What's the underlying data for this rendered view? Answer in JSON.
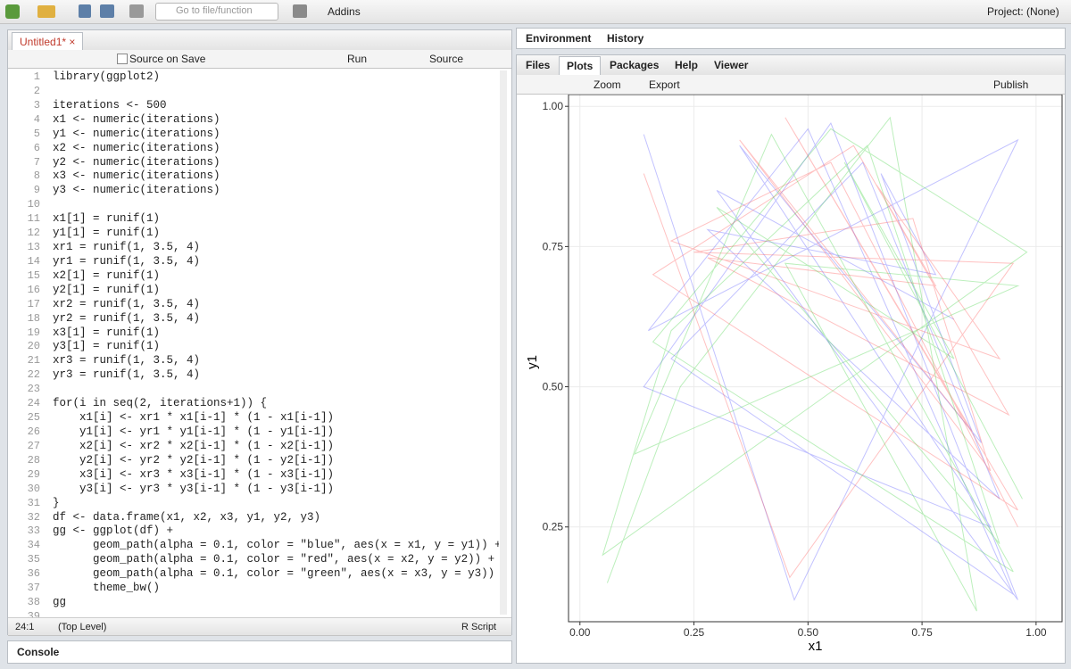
{
  "toolbar": {
    "go_to": "Go to file/function",
    "addins": "Addins",
    "project": "Project: (None)"
  },
  "editor": {
    "tab": "Untitled1*",
    "source_on_save": "Source on Save",
    "run": "Run",
    "source": "Source",
    "lines": [
      {
        "n": 1,
        "code": "library(ggplot2)"
      },
      {
        "n": 2
      },
      {
        "n": 3,
        "code": "iterations <- 500"
      },
      {
        "n": 4,
        "code": "x1 <- numeric(iterations)"
      },
      {
        "n": 5,
        "code": "y1 <- numeric(iterations)"
      },
      {
        "n": 6,
        "code": "x2 <- numeric(iterations)"
      },
      {
        "n": 7,
        "code": "y2 <- numeric(iterations)"
      },
      {
        "n": 8,
        "code": "x3 <- numeric(iterations)"
      },
      {
        "n": 9,
        "code": "y3 <- numeric(iterations)"
      },
      {
        "n": 10
      },
      {
        "n": 11,
        "code": "x1[1] = runif(1)"
      },
      {
        "n": 12,
        "code": "y1[1] = runif(1)"
      },
      {
        "n": 13,
        "code": "xr1 = runif(1, 3.5, 4)"
      },
      {
        "n": 14,
        "code": "yr1 = runif(1, 3.5, 4)"
      },
      {
        "n": 15,
        "code": "x2[1] = runif(1)"
      },
      {
        "n": 16,
        "code": "y2[1] = runif(1)"
      },
      {
        "n": 17,
        "code": "xr2 = runif(1, 3.5, 4)"
      },
      {
        "n": 18,
        "code": "yr2 = runif(1, 3.5, 4)"
      },
      {
        "n": 19,
        "code": "x3[1] = runif(1)"
      },
      {
        "n": 20,
        "code": "y3[1] = runif(1)"
      },
      {
        "n": 21,
        "code": "xr3 = runif(1, 3.5, 4)"
      },
      {
        "n": 22,
        "code": "yr3 = runif(1, 3.5, 4)"
      },
      {
        "n": 23
      },
      {
        "n": 24,
        "code": "for(i in seq(2, iterations+1)) {"
      },
      {
        "n": 25,
        "code": "    x1[i] <- xr1 * x1[i-1] * (1 - x1[i-1])"
      },
      {
        "n": 26,
        "code": "    y1[i] <- yr1 * y1[i-1] * (1 - y1[i-1])"
      },
      {
        "n": 27,
        "code": "    x2[i] <- xr2 * x2[i-1] * (1 - x2[i-1])"
      },
      {
        "n": 28,
        "code": "    y2[i] <- yr2 * y2[i-1] * (1 - y2[i-1])"
      },
      {
        "n": 29,
        "code": "    x3[i] <- xr3 * x3[i-1] * (1 - x3[i-1])"
      },
      {
        "n": 30,
        "code": "    y3[i] <- yr3 * y3[i-1] * (1 - y3[i-1])"
      },
      {
        "n": 31,
        "code": "}"
      },
      {
        "n": 32,
        "code": "df <- data.frame(x1, x2, x3, y1, y2, y3)"
      },
      {
        "n": 33,
        "code": "gg <- ggplot(df) +"
      },
      {
        "n": 34,
        "code": "      geom_path(alpha = 0.1, color = \"blue\", aes(x = x1, y = y1)) +"
      },
      {
        "n": 35,
        "code": "      geom_path(alpha = 0.1, color = \"red\", aes(x = x2, y = y2)) +"
      },
      {
        "n": 36,
        "code": "      geom_path(alpha = 0.1, color = \"green\", aes(x = x3, y = y3)) +"
      },
      {
        "n": 37,
        "code": "      theme_bw()"
      },
      {
        "n": 38,
        "code": "gg"
      },
      {
        "n": 39
      }
    ],
    "status_position": "24:1",
    "status_scope": "(Top Level)",
    "status_type": "R Script"
  },
  "console": {
    "title": "Console"
  },
  "top_right_tabs": [
    "Environment",
    "History"
  ],
  "bottom_right_tabs": [
    "Files",
    "Plots",
    "Packages",
    "Help",
    "Viewer"
  ],
  "plot_toolbar": {
    "zoom": "Zoom",
    "export": "Export",
    "publish": "Publish"
  },
  "chart_data": {
    "type": "path",
    "x_label": "x1",
    "y_label": "y1",
    "xlim": [
      -0.025,
      1.057
    ],
    "ylim": [
      0.081,
      1.021
    ],
    "xticks": [
      {
        "value": 0,
        "label": "0.00"
      },
      {
        "value": 0.25,
        "label": "0.25"
      },
      {
        "value": 0.5,
        "label": "0.50"
      },
      {
        "value": 0.75,
        "label": "0.75"
      },
      {
        "value": 1,
        "label": "1.00"
      }
    ],
    "yticks": [
      {
        "value": 0.25,
        "label": "0.25"
      },
      {
        "value": 0.5,
        "label": "0.50"
      },
      {
        "value": 0.75,
        "label": "0.75"
      },
      {
        "value": 1,
        "label": "1.00"
      }
    ],
    "grid": true,
    "series": [
      {
        "color": "#4f4fff",
        "x": [
          0.14,
          0.47,
          0.96,
          0.15,
          0.5,
          0.95,
          0.2,
          0.62,
          0.92,
          0.28,
          0.78,
          0.66,
          0.88,
          0.35,
          0.9,
          0.14,
          0.55,
          0.96,
          0.3,
          0.82
        ],
        "values": [
          0.95,
          0.12,
          0.94,
          0.6,
          0.96,
          0.13,
          0.55,
          0.9,
          0.3,
          0.78,
          0.7,
          0.88,
          0.4,
          0.93,
          0.25,
          0.5,
          0.97,
          0.12,
          0.85,
          0.62
        ]
      },
      {
        "color": "#ff4f4f",
        "x": [
          0.14,
          0.46,
          0.95,
          0.25,
          0.73,
          0.9,
          0.35,
          0.86,
          0.45,
          0.96,
          0.16,
          0.6,
          0.94,
          0.28,
          0.78,
          0.65,
          0.92,
          0.2,
          0.55,
          0.96
        ],
        "values": [
          0.88,
          0.16,
          0.72,
          0.74,
          0.8,
          0.35,
          0.94,
          0.42,
          0.98,
          0.28,
          0.7,
          0.93,
          0.45,
          0.73,
          0.68,
          0.86,
          0.55,
          0.76,
          0.9,
          0.25
        ]
      },
      {
        "color": "#3fd23f",
        "x": [
          0.06,
          0.22,
          0.68,
          0.87,
          0.45,
          0.96,
          0.12,
          0.42,
          0.95,
          0.16,
          0.55,
          0.98,
          0.05,
          0.2,
          0.63,
          0.92,
          0.3,
          0.82,
          0.58,
          0.97
        ],
        "values": [
          0.15,
          0.5,
          0.98,
          0.1,
          0.72,
          0.68,
          0.38,
          0.95,
          0.17,
          0.58,
          0.96,
          0.74,
          0.2,
          0.6,
          0.93,
          0.22,
          0.82,
          0.55,
          0.9,
          0.3
        ]
      }
    ]
  }
}
